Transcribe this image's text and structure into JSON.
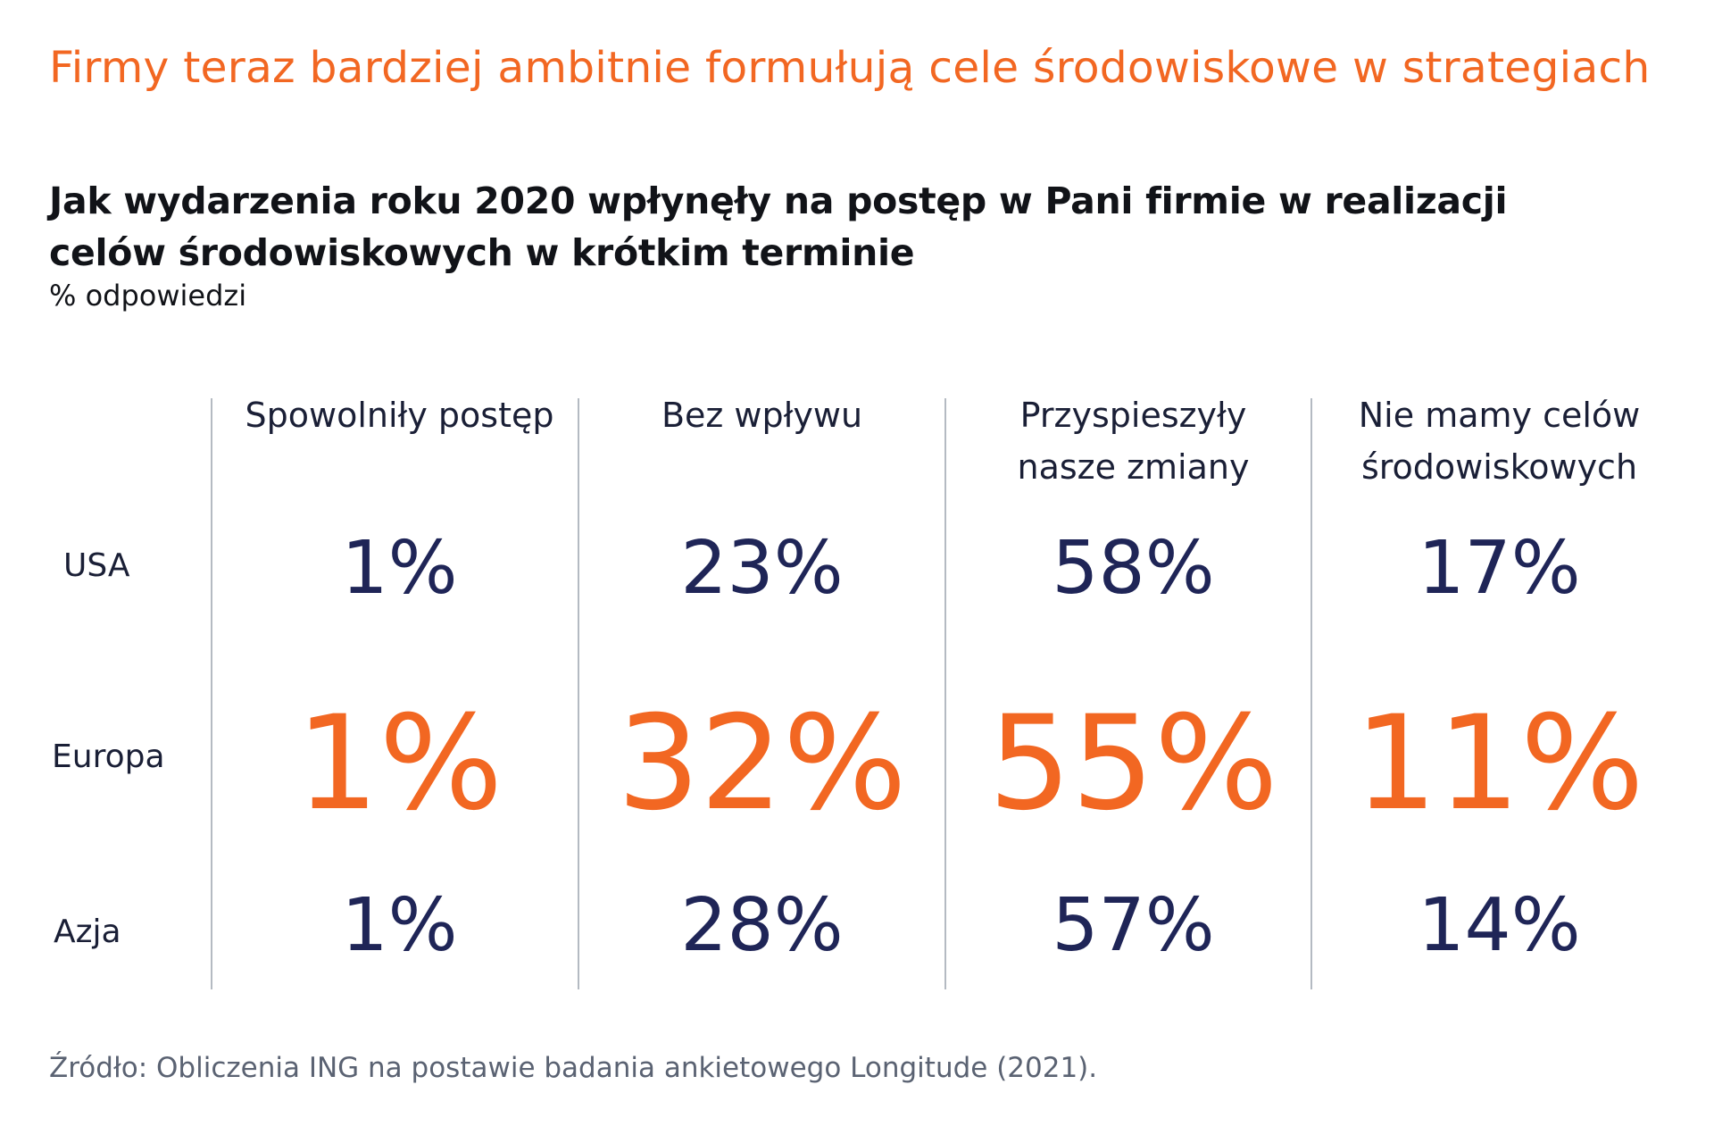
{
  "header": {
    "title": "Firmy teraz bardziej ambitnie formułują cele środowiskowe w strategiach",
    "question_line1": "Jak wydarzenia roku 2020 wpłynęły na postęp w Pani firmie w realizacji",
    "question_line2": "celów środowiskowych w krótkim terminie",
    "unit": "% odpowiedzi"
  },
  "colors": {
    "accent_orange": "#F26722",
    "navy": "#1F2557",
    "divider": "#b4bac2",
    "source_grey": "#5a6272"
  },
  "chart_data": {
    "type": "table",
    "title": "Jak wydarzenia roku 2020 wpłynęły na postęp w Pani firmie w realizacji celów środowiskowych w krótkim terminie",
    "unit": "% odpowiedzi",
    "columns": [
      {
        "line1": "Spowolniły postęp",
        "line2": ""
      },
      {
        "line1": "Bez wpływu",
        "line2": ""
      },
      {
        "line1": "Przyspieszyły",
        "line2": "nasze zmiany"
      },
      {
        "line1": "Nie mamy celów",
        "line2": "środowiskowych"
      }
    ],
    "rows": [
      {
        "label": "USA",
        "highlight": false,
        "values": [
          1,
          23,
          58,
          17
        ],
        "display": [
          "1%",
          "23%",
          "58%",
          "17%"
        ]
      },
      {
        "label": "Europa",
        "highlight": true,
        "values": [
          1,
          32,
          55,
          11
        ],
        "display": [
          "1%",
          "32%",
          "55%",
          "11%"
        ]
      },
      {
        "label": "Azja",
        "highlight": false,
        "values": [
          1,
          28,
          57,
          14
        ],
        "display": [
          "1%",
          "28%",
          "57%",
          "14%"
        ]
      }
    ]
  },
  "footer": {
    "source": "Źródło: Obliczenia ING na postawie badania ankietowego Longitude (2021)."
  }
}
